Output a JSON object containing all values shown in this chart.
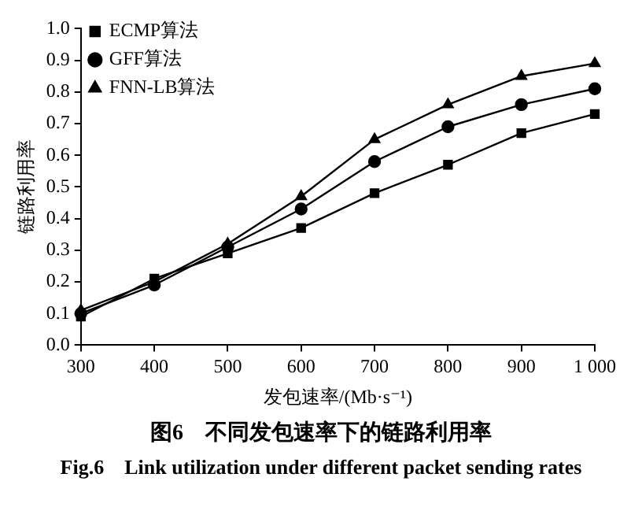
{
  "chart_data": {
    "type": "line",
    "xlabel": "发包速率/(Mb·s⁻¹)",
    "ylabel": "链路利用率",
    "x": [
      300,
      400,
      500,
      600,
      700,
      800,
      900,
      1000
    ],
    "series": [
      {
        "name": "ECMP算法",
        "color": "#000000",
        "marker": "square",
        "values": [
          0.09,
          0.21,
          0.29,
          0.37,
          0.48,
          0.57,
          0.67,
          0.73
        ]
      },
      {
        "name": "GFF算法",
        "color": "#000000",
        "marker": "circle",
        "values": [
          0.1,
          0.19,
          0.31,
          0.43,
          0.58,
          0.69,
          0.76,
          0.81
        ]
      },
      {
        "name": "FNN-LB算法",
        "color": "#000000",
        "marker": "triangle",
        "values": [
          0.11,
          0.2,
          0.32,
          0.47,
          0.65,
          0.76,
          0.85,
          0.89
        ]
      }
    ],
    "xlim": [
      300,
      1000
    ],
    "xticks": [
      300,
      400,
      500,
      600,
      700,
      800,
      900,
      {
        "value": 1000,
        "label": "1 000"
      }
    ],
    "ylim": [
      0,
      1
    ],
    "yticks": [
      {
        "value": 0,
        "label": "0.0"
      },
      0.1,
      0.2,
      0.3,
      0.4,
      0.5,
      0.6,
      0.7,
      0.8,
      0.9,
      {
        "value": 1,
        "label": "1.0"
      }
    ],
    "grid": false,
    "legend": "top left",
    "line_style": "solid",
    "annotations": [
      "图6　不同发包速率下的链路利用率",
      "Fig.6　Link utilization under different packet sending rates"
    ]
  }
}
